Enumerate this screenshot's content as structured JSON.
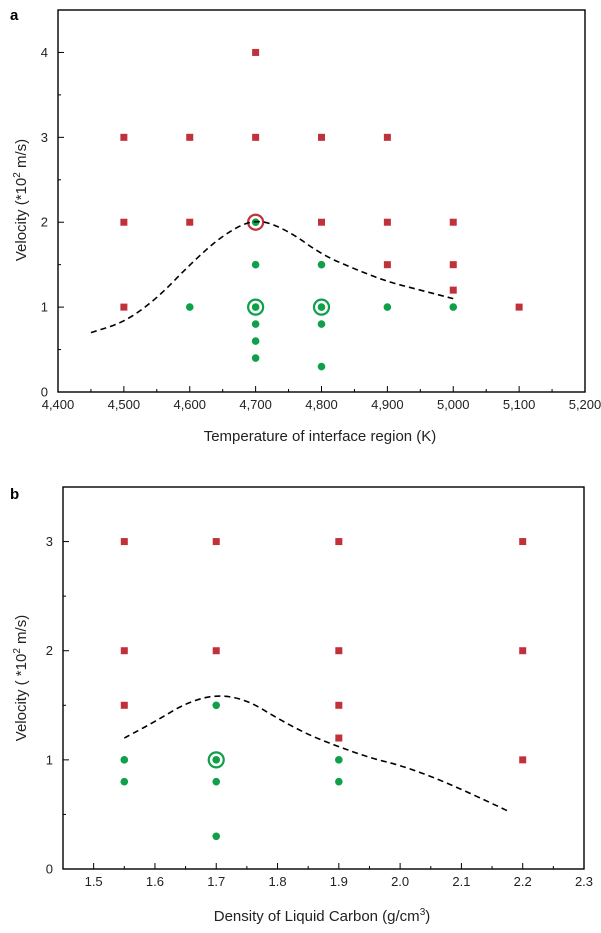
{
  "colors": {
    "red_marker": "#c0313a",
    "green_marker": "#10a04a"
  },
  "chart_data": [
    {
      "panel": "a",
      "type": "scatter",
      "xlabel": "Temperature of interface region (K)",
      "ylabel_main": "Velocity (*10",
      "ylabel_sup": "2",
      "ylabel_tail": " m/s)",
      "xlim": [
        4400,
        5200
      ],
      "ylim": [
        0,
        4.5
      ],
      "xticks": [
        4400,
        4500,
        4600,
        4700,
        4800,
        4900,
        5000,
        5100,
        5200
      ],
      "xtick_labels": [
        "4,400",
        "4,500",
        "4,600",
        "4,700",
        "4,800",
        "4,900",
        "5,000",
        "5,100",
        "5,200"
      ],
      "yticks": [
        0,
        1,
        2,
        3,
        4
      ],
      "ytick_labels": [
        "0",
        "1",
        "2",
        "3",
        "4"
      ],
      "grid": false,
      "series": [
        {
          "marker": "square",
          "color": "#c0313a",
          "points": [
            [
              4500,
              1
            ],
            [
              4500,
              2
            ],
            [
              4500,
              3
            ],
            [
              4600,
              2
            ],
            [
              4600,
              3
            ],
            [
              4700,
              3
            ],
            [
              4700,
              4
            ],
            [
              4800,
              2
            ],
            [
              4800,
              3
            ],
            [
              4900,
              1.5
            ],
            [
              4900,
              2
            ],
            [
              4900,
              3
            ],
            [
              5000,
              1.2
            ],
            [
              5000,
              1.5
            ],
            [
              5000,
              2
            ],
            [
              5100,
              1
            ]
          ]
        },
        {
          "marker": "circle",
          "color": "#10a04a",
          "points": [
            [
              4600,
              1
            ],
            [
              4700,
              0.4
            ],
            [
              4700,
              0.6
            ],
            [
              4700,
              0.8
            ],
            [
              4700,
              1
            ],
            [
              4700,
              1.5
            ],
            [
              4700,
              2
            ],
            [
              4800,
              0.3
            ],
            [
              4800,
              0.8
            ],
            [
              4800,
              1
            ],
            [
              4800,
              1.5
            ],
            [
              4900,
              1
            ],
            [
              5000,
              1
            ]
          ]
        },
        {
          "marker": "ring",
          "color": "#10a04a",
          "points": [
            [
              4700,
              1
            ],
            [
              4800,
              1
            ]
          ]
        },
        {
          "marker": "ring",
          "color": "#c0313a",
          "points": [
            [
              4700,
              2
            ]
          ]
        },
        {
          "marker": "dashed-line",
          "color": "#000000",
          "points": [
            [
              4450,
              0.7
            ],
            [
              4500,
              0.82
            ],
            [
              4550,
              1.1
            ],
            [
              4600,
              1.5
            ],
            [
              4650,
              1.85
            ],
            [
              4700,
              2.05
            ],
            [
              4750,
              1.9
            ],
            [
              4800,
              1.62
            ],
            [
              4850,
              1.45
            ],
            [
              4900,
              1.3
            ],
            [
              4950,
              1.2
            ],
            [
              5000,
              1.1
            ]
          ]
        }
      ]
    },
    {
      "panel": "b",
      "type": "scatter",
      "xlabel_main": "Density of Liquid Carbon (g/cm",
      "xlabel_sup": "3",
      "xlabel_tail": ")",
      "ylabel_main": "Velocity ( *10",
      "ylabel_sup": "2",
      "ylabel_tail": " m/s)",
      "xlim": [
        1.45,
        2.3
      ],
      "ylim": [
        0,
        3.5
      ],
      "xticks": [
        1.5,
        1.6,
        1.7,
        1.8,
        1.9,
        2.0,
        2.1,
        2.2,
        2.3
      ],
      "xtick_labels": [
        "1.5",
        "1.6",
        "1.7",
        "1.8",
        "1.9",
        "2.0",
        "2.1",
        "2.2",
        "2.3"
      ],
      "yticks": [
        0,
        1,
        2,
        3
      ],
      "ytick_labels": [
        "0",
        "1",
        "2",
        "3"
      ],
      "grid": false,
      "series": [
        {
          "marker": "square",
          "color": "#c0313a",
          "points": [
            [
              1.55,
              1.5
            ],
            [
              1.55,
              2
            ],
            [
              1.55,
              3
            ],
            [
              1.7,
              2
            ],
            [
              1.7,
              3
            ],
            [
              1.9,
              1.2
            ],
            [
              1.9,
              1.5
            ],
            [
              1.9,
              2
            ],
            [
              1.9,
              3
            ],
            [
              2.2,
              1
            ],
            [
              2.2,
              2
            ],
            [
              2.2,
              3
            ]
          ]
        },
        {
          "marker": "circle",
          "color": "#10a04a",
          "points": [
            [
              1.55,
              0.8
            ],
            [
              1.55,
              1
            ],
            [
              1.7,
              0.3
            ],
            [
              1.7,
              0.8
            ],
            [
              1.7,
              1
            ],
            [
              1.7,
              1.5
            ],
            [
              1.9,
              0.8
            ],
            [
              1.9,
              1
            ]
          ]
        },
        {
          "marker": "ring",
          "color": "#10a04a",
          "points": [
            [
              1.7,
              1
            ]
          ]
        },
        {
          "marker": "dashed-line",
          "color": "#000000",
          "points": [
            [
              1.55,
              1.2
            ],
            [
              1.6,
              1.35
            ],
            [
              1.65,
              1.52
            ],
            [
              1.7,
              1.6
            ],
            [
              1.75,
              1.55
            ],
            [
              1.8,
              1.38
            ],
            [
              1.85,
              1.23
            ],
            [
              1.9,
              1.12
            ],
            [
              1.95,
              1.02
            ],
            [
              2.0,
              0.95
            ],
            [
              2.05,
              0.85
            ],
            [
              2.1,
              0.73
            ],
            [
              2.15,
              0.6
            ],
            [
              2.18,
              0.52
            ]
          ]
        }
      ]
    }
  ]
}
